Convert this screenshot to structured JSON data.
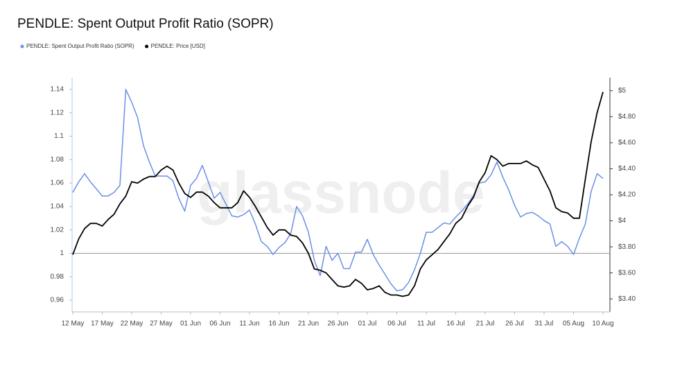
{
  "chart_data": {
    "type": "line",
    "title": "PENDLE: Spent Output Profit Ratio (SOPR)",
    "watermark": "glassnode",
    "categories": [
      "12 May",
      null,
      null,
      null,
      null,
      "17 May",
      null,
      null,
      null,
      null,
      "22 May",
      null,
      null,
      null,
      null,
      "27 May",
      null,
      null,
      null,
      null,
      "01 Jun",
      null,
      null,
      null,
      null,
      "06 Jun",
      null,
      null,
      null,
      null,
      "11 Jun",
      null,
      null,
      null,
      null,
      "16 Jun",
      null,
      null,
      null,
      null,
      "21 Jun",
      null,
      null,
      null,
      null,
      "26 Jun",
      null,
      null,
      null,
      null,
      "01 Jul",
      null,
      null,
      null,
      null,
      "06 Jul",
      null,
      null,
      null,
      null,
      "11 Jul",
      null,
      null,
      null,
      null,
      "16 Jul",
      null,
      null,
      null,
      null,
      "21 Jul",
      null,
      null,
      null,
      null,
      "26 Jul",
      null,
      null,
      null,
      null,
      "31 Jul",
      null,
      null,
      null,
      null,
      "05 Aug",
      null,
      null,
      null,
      null,
      "10 Aug"
    ],
    "series": [
      {
        "name": "PENDLE: Spent Output Profit Ratio (SOPR)",
        "color": "#6a8fe6",
        "axis": "y",
        "values": [
          1.052,
          1.061,
          1.068,
          1.061,
          1.055,
          1.049,
          1.049,
          1.052,
          1.058,
          1.14,
          1.129,
          1.116,
          1.092,
          1.078,
          1.066,
          1.066,
          1.066,
          1.062,
          1.047,
          1.036,
          1.058,
          1.064,
          1.075,
          1.061,
          1.047,
          1.052,
          1.042,
          1.032,
          1.031,
          1.033,
          1.037,
          1.025,
          1.01,
          1.006,
          0.999,
          1.005,
          1.009,
          1.017,
          1.04,
          1.032,
          1.018,
          0.994,
          0.981,
          1.006,
          0.994,
          1.0,
          0.987,
          0.987,
          1.001,
          1.001,
          1.012,
          0.999,
          0.99,
          0.982,
          0.974,
          0.968,
          0.969,
          0.975,
          0.986,
          1.0,
          1.018,
          1.018,
          1.022,
          1.026,
          1.025,
          1.031,
          1.036,
          1.042,
          1.049,
          1.06,
          1.061,
          1.067,
          1.078,
          1.065,
          1.054,
          1.041,
          1.031,
          1.034,
          1.035,
          1.032,
          1.028,
          1.025,
          1.006,
          1.01,
          1.006,
          0.999,
          1.013,
          1.025,
          1.053,
          1.068,
          1.064
        ]
      },
      {
        "name": "PENDLE: Price [USD]",
        "color": "#000000",
        "axis": "y2",
        "values": [
          3.74,
          3.86,
          3.94,
          3.98,
          3.98,
          3.96,
          4.01,
          4.05,
          4.13,
          4.19,
          4.3,
          4.29,
          4.32,
          4.34,
          4.34,
          4.39,
          4.42,
          4.39,
          4.29,
          4.21,
          4.18,
          4.22,
          4.22,
          4.19,
          4.14,
          4.1,
          4.1,
          4.1,
          4.14,
          4.23,
          4.18,
          4.11,
          4.03,
          3.95,
          3.89,
          3.93,
          3.93,
          3.89,
          3.88,
          3.83,
          3.75,
          3.63,
          3.62,
          3.6,
          3.55,
          3.5,
          3.49,
          3.5,
          3.55,
          3.52,
          3.47,
          3.48,
          3.5,
          3.45,
          3.43,
          3.43,
          3.42,
          3.43,
          3.5,
          3.63,
          3.7,
          3.74,
          3.78,
          3.84,
          3.9,
          3.98,
          4.02,
          4.11,
          4.18,
          4.3,
          4.37,
          4.5,
          4.47,
          4.42,
          4.44,
          4.44,
          4.44,
          4.46,
          4.43,
          4.41,
          4.32,
          4.23,
          4.1,
          4.07,
          4.06,
          4.02,
          4.02,
          4.32,
          4.61,
          4.83,
          4.99
        ]
      }
    ],
    "ylim": [
      0.95,
      1.15
    ],
    "yticks": [
      0.96,
      0.98,
      1,
      1.02,
      1.04,
      1.06,
      1.08,
      1.1,
      1.12,
      1.14
    ],
    "y2lim": [
      3.3,
      5.1
    ],
    "y2ticks": [
      {
        "value": 3.4,
        "label": "$3.40"
      },
      {
        "value": 3.6,
        "label": "$3.60"
      },
      {
        "value": 3.8,
        "label": "$3.80"
      },
      {
        "value": 4,
        "label": "$4"
      },
      {
        "value": 4.2,
        "label": "$4.20"
      },
      {
        "value": 4.4,
        "label": "$4.40"
      },
      {
        "value": 4.6,
        "label": "$4.60"
      },
      {
        "value": 4.8,
        "label": "$4.80"
      },
      {
        "value": 5,
        "label": "$5"
      }
    ],
    "reference_line": 1
  }
}
